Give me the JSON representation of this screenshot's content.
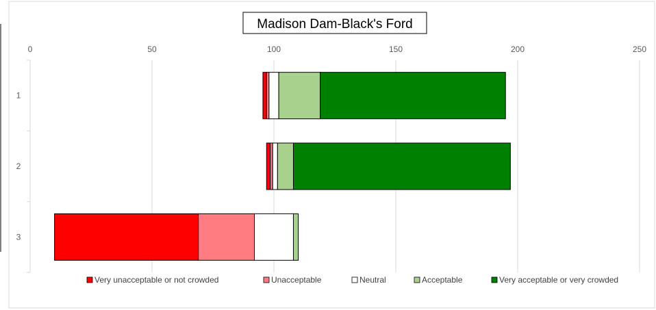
{
  "chart_data": {
    "type": "bar",
    "orientation": "horizontal",
    "stacked": true,
    "title": "Madison Dam-Black's Ford",
    "categories": [
      "1",
      "2",
      "3"
    ],
    "x_ticks": [
      0,
      50,
      100,
      150,
      200,
      250
    ],
    "xlim": [
      0,
      250
    ],
    "x_axis_position": "top",
    "grid": true,
    "legend_position": "bottom",
    "series": [
      {
        "name": "Very unacceptable or not crowded",
        "color": "#ff0000",
        "start": [
          95.5,
          97,
          10
        ],
        "values": [
          1.5,
          1.5,
          59
        ]
      },
      {
        "name": "Unacceptable",
        "color": "#ff7c80",
        "values": [
          1,
          1,
          23
        ]
      },
      {
        "name": "Neutral",
        "color": "#ffffff",
        "values": [
          4,
          2,
          16
        ]
      },
      {
        "name": "Acceptable",
        "color": "#a9d18e",
        "values": [
          17,
          6.5,
          2
        ]
      },
      {
        "name": "Very acceptable or very crowded",
        "color": "#008000",
        "values": [
          76,
          89,
          0
        ]
      }
    ]
  }
}
